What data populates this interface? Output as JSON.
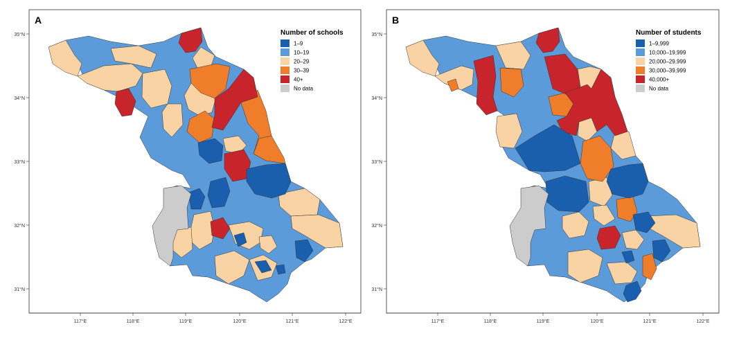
{
  "colors": {
    "c1": "#1a5fae",
    "c2": "#5b9bd9",
    "c3": "#f9d3a3",
    "c4": "#ef7d2a",
    "c5": "#c7252b",
    "nodata": "#cccccc"
  },
  "axes": {
    "lon_ticks": [
      "117°E",
      "118°E",
      "119°E",
      "120°E",
      "121°E",
      "122°E"
    ],
    "lat_ticks": [
      "35°N",
      "34°N",
      "33°N",
      "32°N",
      "31°N"
    ]
  },
  "panels": [
    {
      "letter": "A",
      "legend_title": "Number of schools",
      "legend": [
        {
          "label": "1–9",
          "color_key": "c1"
        },
        {
          "label": "10–19",
          "color_key": "c2"
        },
        {
          "label": "20–29",
          "color_key": "c3"
        },
        {
          "label": "30–39",
          "color_key": "c4"
        },
        {
          "label": "40+",
          "color_key": "c5"
        },
        {
          "label": "No data",
          "color_key": "nodata"
        }
      ]
    },
    {
      "letter": "B",
      "legend_title": "Number of students",
      "legend": [
        {
          "label": "1–9,999",
          "color_key": "c1"
        },
        {
          "label": "10,000–19,999",
          "color_key": "c2"
        },
        {
          "label": "20,000–29,999",
          "color_key": "c3"
        },
        {
          "label": "30,000–39,999",
          "color_key": "c4"
        },
        {
          "label": "40,000+",
          "color_key": "c5"
        },
        {
          "label": "No data",
          "color_key": "nodata"
        }
      ]
    }
  ]
}
